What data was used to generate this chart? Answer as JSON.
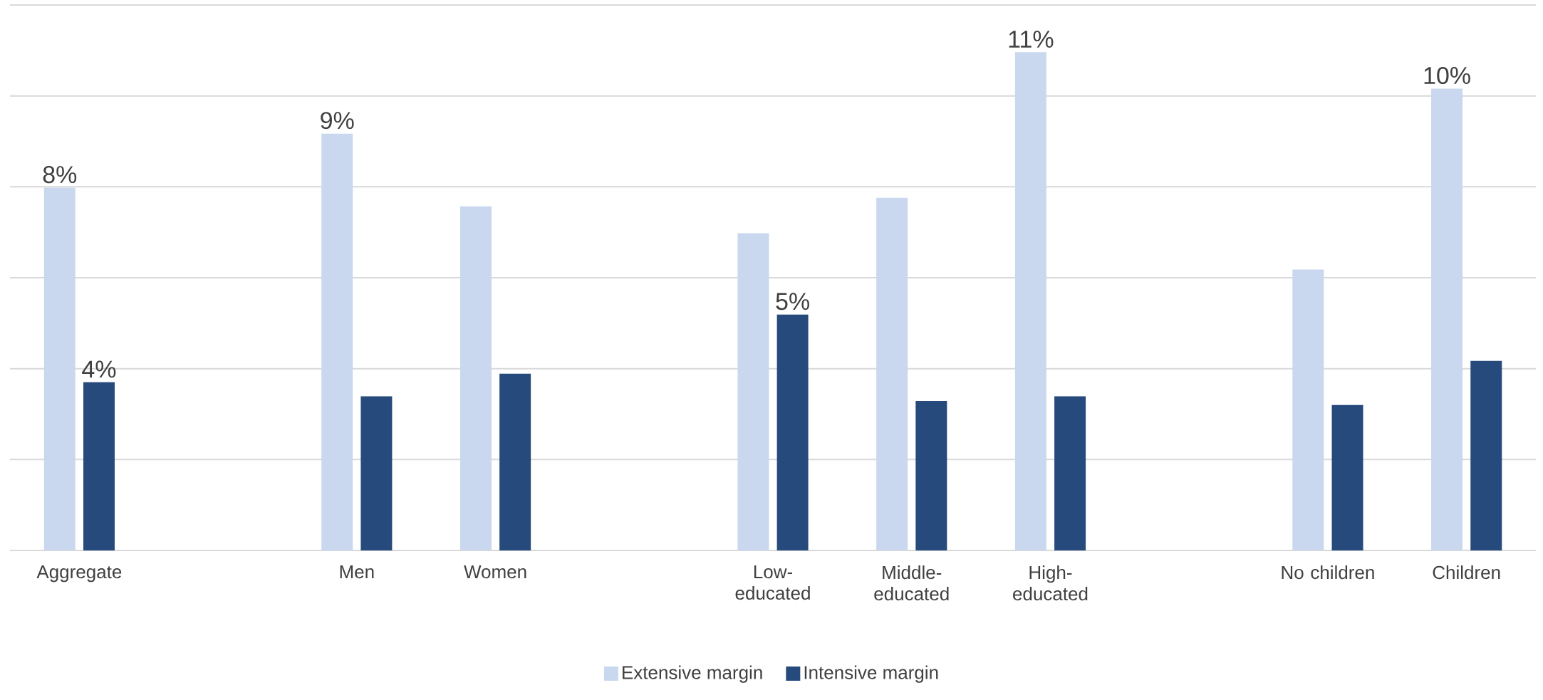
{
  "chart_data": {
    "type": "bar",
    "categories": [
      "Aggregate",
      null,
      "Men",
      "Women",
      null,
      "Low-educated",
      "Middle-educated",
      "High-educated",
      null,
      "No children",
      "Children"
    ],
    "series": [
      {
        "name": "Extensive margin",
        "color": "#c9d8ee",
        "values": [
          7.98,
          null,
          9.17,
          7.57,
          null,
          6.98,
          7.76,
          10.96,
          null,
          6.18,
          10.16
        ],
        "value_labels": [
          "8%",
          null,
          "9%",
          null,
          null,
          null,
          null,
          "11%",
          null,
          null,
          "10%"
        ]
      },
      {
        "name": "Intensive margin",
        "color": "#264a7c",
        "values": [
          3.7,
          null,
          3.39,
          3.89,
          null,
          5.19,
          3.29,
          3.39,
          null,
          3.2,
          4.17
        ],
        "value_labels": [
          "4%",
          null,
          null,
          null,
          null,
          "5%",
          null,
          null,
          null,
          null,
          null
        ]
      }
    ],
    "ylim": [
      0,
      12
    ],
    "yticks": [
      {
        "value": 0,
        "label": null
      },
      {
        "value": 2,
        "label": null
      },
      {
        "value": 4,
        "label": null
      },
      {
        "value": 6,
        "label": null
      },
      {
        "value": 8,
        "label": null
      },
      {
        "value": 10,
        "label": null
      },
      {
        "value": 12,
        "label": null
      }
    ],
    "tick_labels": "x",
    "grid": "y",
    "legend": "bottom"
  }
}
